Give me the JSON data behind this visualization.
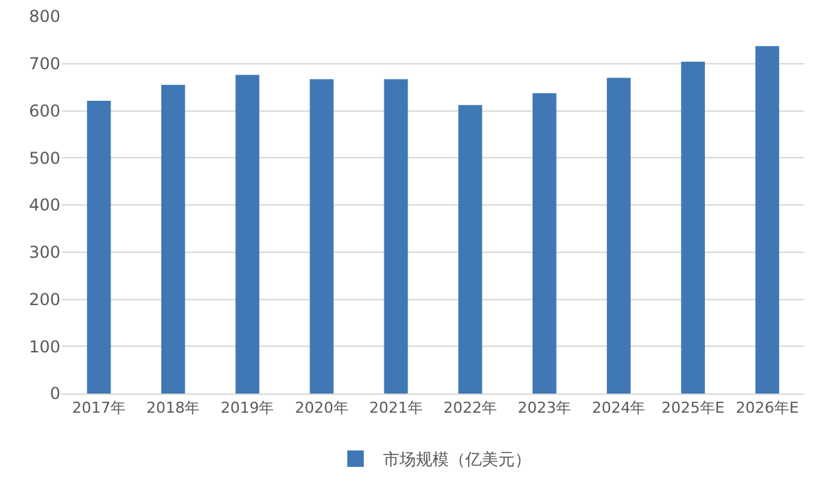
{
  "chart_data": {
    "type": "bar",
    "categories": [
      "2017年",
      "2018年",
      "2019年",
      "2020年",
      "2021年",
      "2022年",
      "2023年",
      "2024年",
      "2025年E",
      "2026年E"
    ],
    "series": [
      {
        "name": "市场规模（亿美元）",
        "color": "#3f78b4",
        "values": [
          621,
          655,
          676,
          667,
          667,
          612,
          637,
          670,
          704,
          737
        ]
      }
    ],
    "ylim": [
      0,
      800
    ],
    "yticks": [
      0,
      100,
      200,
      300,
      400,
      500,
      600,
      700,
      800
    ],
    "grid": "y",
    "legend": "bottom"
  }
}
